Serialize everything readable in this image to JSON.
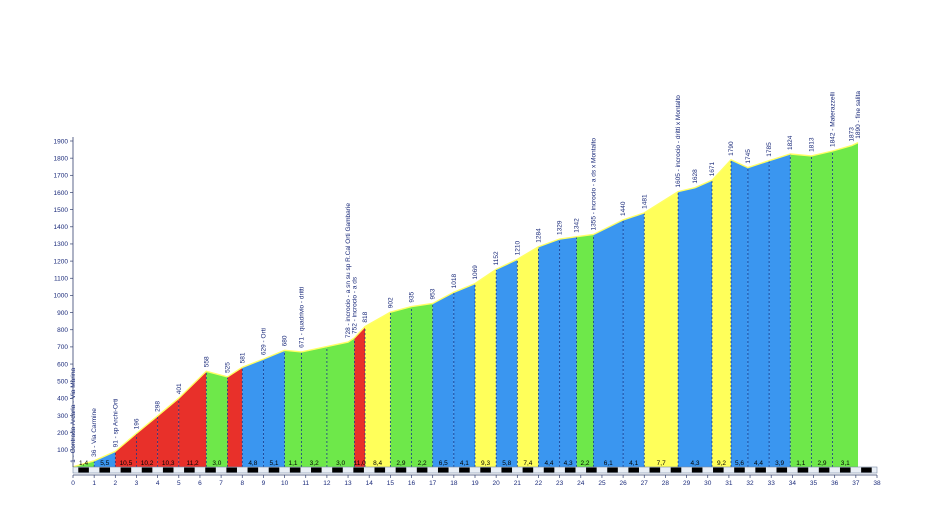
{
  "chart_data": {
    "type": "area",
    "title": "",
    "xlabel": "",
    "ylabel": "",
    "xlim": [
      0,
      38
    ],
    "ylim": [
      0,
      1900
    ],
    "x_ticks": [
      0,
      1,
      2,
      3,
      4,
      5,
      6,
      7,
      8,
      9,
      10,
      11,
      12,
      13,
      14,
      15,
      16,
      17,
      18,
      19,
      20,
      21,
      22,
      23,
      24,
      25,
      26,
      27,
      28,
      29,
      30,
      31,
      32,
      33,
      34,
      35,
      36,
      37,
      38
    ],
    "y_ticks": [
      100,
      200,
      300,
      400,
      500,
      600,
      700,
      800,
      900,
      1000,
      1100,
      1200,
      1300,
      1400,
      1500,
      1600,
      1700,
      1800,
      1900
    ],
    "grid": false,
    "colors": {
      "green": "#6ee84a",
      "blue": "#3a96f0",
      "red": "#e8302a",
      "yellow": "#ffff5a",
      "profile_line": "#ffff66",
      "base_bar": "#000000",
      "base_box": "#e8eef5"
    },
    "points": [
      {
        "x": 0,
        "y": 1,
        "label": "1 - Contrada Arcarla - Via Marina"
      },
      {
        "x": 1,
        "y": 36,
        "label": "36 - Via Carmine"
      },
      {
        "x": 2,
        "y": 91,
        "label": "91 - sp Archi-Orti"
      },
      {
        "x": 3,
        "y": 196,
        "label": "196"
      },
      {
        "x": 4,
        "y": 298,
        "label": "298"
      },
      {
        "x": 5,
        "y": 401,
        "label": "401"
      },
      {
        "x": 6.3,
        "y": 558,
        "label": "558"
      },
      {
        "x": 7.3,
        "y": 525,
        "label": "525"
      },
      {
        "x": 8,
        "y": 581,
        "label": "581"
      },
      {
        "x": 9,
        "y": 629,
        "label": "629 - Orti"
      },
      {
        "x": 10,
        "y": 680,
        "label": "680"
      },
      {
        "x": 10.8,
        "y": 671,
        "label": "671 - quadrivio - dritti"
      },
      {
        "x": 13,
        "y": 728,
        "label": "728 - incrocio - a sn su sp R.Cal Orti Gambarie"
      },
      {
        "x": 13.3,
        "y": 752,
        "label": "752 - incrocio - a ds"
      },
      {
        "x": 13.8,
        "y": 818,
        "label": "818"
      },
      {
        "x": 15,
        "y": 902,
        "label": "902"
      },
      {
        "x": 16,
        "y": 935,
        "label": "935"
      },
      {
        "x": 17,
        "y": 953,
        "label": "953"
      },
      {
        "x": 18,
        "y": 1018,
        "label": "1018"
      },
      {
        "x": 19,
        "y": 1069,
        "label": "1069"
      },
      {
        "x": 20,
        "y": 1152,
        "label": "1152"
      },
      {
        "x": 21,
        "y": 1210,
        "label": "1210"
      },
      {
        "x": 22,
        "y": 1284,
        "label": "1284"
      },
      {
        "x": 23,
        "y": 1329,
        "label": "1329"
      },
      {
        "x": 23.8,
        "y": 1342,
        "label": "1342"
      },
      {
        "x": 24.6,
        "y": 1355,
        "label": "1355 - incrocio - a ds x Montalto"
      },
      {
        "x": 26,
        "y": 1440,
        "label": "1440"
      },
      {
        "x": 27,
        "y": 1481,
        "label": "1481"
      },
      {
        "x": 28.6,
        "y": 1605,
        "label": "1605 - incrocio - dritti x Montalto"
      },
      {
        "x": 29.4,
        "y": 1628,
        "label": "1628"
      },
      {
        "x": 30.2,
        "y": 1671,
        "label": "1671"
      },
      {
        "x": 31.1,
        "y": 1790,
        "label": "1790"
      },
      {
        "x": 31.9,
        "y": 1745,
        "label": "1745"
      },
      {
        "x": 32.9,
        "y": 1785,
        "label": "1785"
      },
      {
        "x": 33.9,
        "y": 1824,
        "label": "1824"
      },
      {
        "x": 34.9,
        "y": 1813,
        "label": "1813"
      },
      {
        "x": 35.9,
        "y": 1842,
        "label": "1842 - Materazzelli"
      },
      {
        "x": 36.8,
        "y": 1873,
        "label": "1873"
      },
      {
        "x": 37.1,
        "y": 1890,
        "label": "1890 - fine salita"
      }
    ],
    "segments": [
      {
        "x0": 0,
        "x1": 1,
        "grade": "1,4",
        "color": "green"
      },
      {
        "x0": 1,
        "x1": 2,
        "grade": "5,5",
        "color": "blue"
      },
      {
        "x0": 2,
        "x1": 3,
        "grade": "10,5",
        "color": "red"
      },
      {
        "x0": 3,
        "x1": 4,
        "grade": "10,2",
        "color": "red"
      },
      {
        "x0": 4,
        "x1": 5,
        "grade": "10,3",
        "color": "red"
      },
      {
        "x0": 5,
        "x1": 6.3,
        "grade": "11,2",
        "color": "red"
      },
      {
        "x0": 6.3,
        "x1": 7.3,
        "grade": "3,0",
        "color": "green"
      },
      {
        "x0": 7.3,
        "x1": 8,
        "grade": "",
        "color": "red"
      },
      {
        "x0": 8,
        "x1": 9,
        "grade": "4,8",
        "color": "blue"
      },
      {
        "x0": 9,
        "x1": 10,
        "grade": "5,1",
        "color": "blue"
      },
      {
        "x0": 10,
        "x1": 10.8,
        "grade": "1,1",
        "color": "green"
      },
      {
        "x0": 10.8,
        "x1": 12,
        "grade": "3,2",
        "color": "green"
      },
      {
        "x0": 12,
        "x1": 13.3,
        "grade": "3,0",
        "color": "green"
      },
      {
        "x0": 13.3,
        "x1": 13.8,
        "grade": "11,0",
        "color": "red"
      },
      {
        "x0": 13.8,
        "x1": 15,
        "grade": "8,4",
        "color": "yellow"
      },
      {
        "x0": 15,
        "x1": 16,
        "grade": "2,9",
        "color": "green"
      },
      {
        "x0": 16,
        "x1": 17,
        "grade": "2,2",
        "color": "green"
      },
      {
        "x0": 17,
        "x1": 18,
        "grade": "6,5",
        "color": "blue"
      },
      {
        "x0": 18,
        "x1": 19,
        "grade": "4,1",
        "color": "blue"
      },
      {
        "x0": 19,
        "x1": 20,
        "grade": "9,3",
        "color": "yellow"
      },
      {
        "x0": 20,
        "x1": 21,
        "grade": "5,8",
        "color": "blue"
      },
      {
        "x0": 21,
        "x1": 22,
        "grade": "7,4",
        "color": "yellow"
      },
      {
        "x0": 22,
        "x1": 23,
        "grade": "4,4",
        "color": "blue"
      },
      {
        "x0": 23,
        "x1": 23.8,
        "grade": "4,3",
        "color": "blue"
      },
      {
        "x0": 23.8,
        "x1": 24.6,
        "grade": "2,2",
        "color": "green"
      },
      {
        "x0": 24.6,
        "x1": 26,
        "grade": "6,1",
        "color": "blue"
      },
      {
        "x0": 26,
        "x1": 27,
        "grade": "4,1",
        "color": "blue"
      },
      {
        "x0": 27,
        "x1": 28.6,
        "grade": "7,7",
        "color": "yellow"
      },
      {
        "x0": 28.6,
        "x1": 30.2,
        "grade": "4,3",
        "color": "blue"
      },
      {
        "x0": 30.2,
        "x1": 31.1,
        "grade": "9,2",
        "color": "yellow"
      },
      {
        "x0": 31.1,
        "x1": 31.9,
        "grade": "5,6",
        "color": "blue"
      },
      {
        "x0": 31.9,
        "x1": 32.9,
        "grade": "4,4",
        "color": "blue"
      },
      {
        "x0": 32.9,
        "x1": 33.9,
        "grade": "3,9",
        "color": "blue"
      },
      {
        "x0": 33.9,
        "x1": 34.9,
        "grade": "1,1",
        "color": "green"
      },
      {
        "x0": 34.9,
        "x1": 35.9,
        "grade": "2,9",
        "color": "green"
      },
      {
        "x0": 35.9,
        "x1": 37.1,
        "grade": "3,1",
        "color": "green"
      }
    ]
  }
}
